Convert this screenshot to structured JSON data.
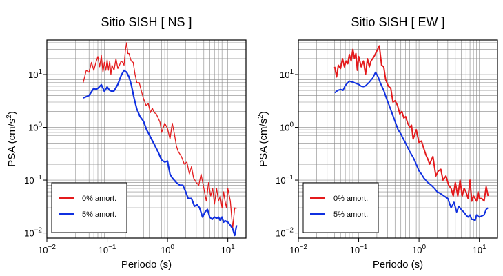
{
  "colors": {
    "red": "#e41a1c",
    "blue": "#1030e0",
    "grid": "#888888",
    "frame": "#000000"
  },
  "chart_data": [
    {
      "type": "line",
      "title": "Sitio SISH [ NS ]",
      "xlabel": "Periodo (s)",
      "ylabel": "PSA (cm/s2)",
      "ylabel_base": "PSA (cm/s",
      "ylabel_sup": "2",
      "ylabel_close": ")",
      "xscale": "log",
      "yscale": "log",
      "xlim": [
        0.01,
        20
      ],
      "ylim": [
        0.008,
        45
      ],
      "xticks": [
        {
          "v": 0.01,
          "base": "10",
          "exp": "−2"
        },
        {
          "v": 0.1,
          "base": "10",
          "exp": "−1"
        },
        {
          "v": 1,
          "base": "10",
          "exp": "0"
        },
        {
          "v": 10,
          "base": "10",
          "exp": "1"
        }
      ],
      "yticks": [
        {
          "v": 0.01,
          "base": "10",
          "exp": "−2"
        },
        {
          "v": 0.1,
          "base": "10",
          "exp": "−1"
        },
        {
          "v": 1,
          "base": "10",
          "exp": "0"
        },
        {
          "v": 10,
          "base": "10",
          "exp": "1"
        }
      ],
      "grid": true,
      "legend_position": "bottom-left",
      "series": [
        {
          "name": "0% amort.",
          "color": "red",
          "width": 1.3,
          "x": [
            0.04,
            0.045,
            0.05,
            0.055,
            0.06,
            0.065,
            0.07,
            0.075,
            0.08,
            0.085,
            0.09,
            0.095,
            0.1,
            0.105,
            0.11,
            0.115,
            0.12,
            0.13,
            0.14,
            0.15,
            0.16,
            0.17,
            0.18,
            0.19,
            0.2,
            0.21,
            0.22,
            0.23,
            0.25,
            0.27,
            0.29,
            0.31,
            0.34,
            0.37,
            0.4,
            0.44,
            0.48,
            0.52,
            0.56,
            0.6,
            0.65,
            0.7,
            0.75,
            0.8,
            0.9,
            1.0,
            1.1,
            1.2,
            1.3,
            1.4,
            1.5,
            1.7,
            1.9,
            2.1,
            2.3,
            2.5,
            2.7,
            3.0,
            3.3,
            3.6,
            4.0,
            4.4,
            4.8,
            5.2,
            5.6,
            6.0,
            6.5,
            7.0,
            7.5,
            8.0,
            8.5,
            9.0,
            9.5,
            10.0,
            11.0,
            12.0,
            13.0,
            14.0
          ],
          "y": [
            7,
            12,
            11,
            17,
            12,
            17,
            22,
            14,
            23,
            11,
            17,
            12,
            19,
            12,
            18,
            10,
            15,
            12,
            20,
            13,
            15,
            18,
            17,
            15,
            28,
            40,
            25,
            25,
            18,
            17,
            10,
            7,
            7,
            4.8,
            3.5,
            2.6,
            2.8,
            1.9,
            2.3,
            1.9,
            1.8,
            1.5,
            1.25,
            0.8,
            1.2,
            0.95,
            0.6,
            1.2,
            0.75,
            0.45,
            0.35,
            0.28,
            0.2,
            0.22,
            0.13,
            0.18,
            0.11,
            0.09,
            0.08,
            0.13,
            0.07,
            0.04,
            0.09,
            0.05,
            0.07,
            0.035,
            0.07,
            0.04,
            0.05,
            0.03,
            0.06,
            0.04,
            0.03,
            0.07,
            0.04,
            0.012,
            0.03,
            0.029
          ]
        },
        {
          "name": "5% amort.",
          "color": "blue",
          "width": 2.2,
          "x": [
            0.04,
            0.05,
            0.06,
            0.065,
            0.07,
            0.08,
            0.09,
            0.1,
            0.11,
            0.12,
            0.13,
            0.15,
            0.17,
            0.19,
            0.21,
            0.23,
            0.25,
            0.28,
            0.31,
            0.35,
            0.4,
            0.45,
            0.5,
            0.55,
            0.6,
            0.7,
            0.8,
            0.9,
            1.0,
            1.1,
            1.2,
            1.4,
            1.6,
            1.8,
            2.0,
            2.2,
            2.5,
            2.8,
            3.1,
            3.4,
            3.8,
            4.2,
            4.6,
            5.0,
            5.5,
            6.0,
            6.5,
            7.0,
            7.5,
            8.0,
            8.5,
            9.0,
            10.0,
            11.0,
            12.0,
            13.0,
            14.0
          ],
          "y": [
            3.6,
            4.0,
            5.5,
            5.2,
            5.5,
            6.4,
            4.8,
            5.8,
            5.0,
            4.8,
            4.9,
            6.5,
            9.5,
            12,
            11,
            9,
            6.5,
            3.5,
            2.2,
            1.6,
            1.3,
            0.9,
            0.72,
            0.58,
            0.48,
            0.34,
            0.24,
            0.22,
            0.23,
            0.13,
            0.11,
            0.09,
            0.08,
            0.08,
            0.06,
            0.045,
            0.045,
            0.032,
            0.034,
            0.03,
            0.02,
            0.025,
            0.028,
            0.02,
            0.018,
            0.02,
            0.019,
            0.02,
            0.017,
            0.02,
            0.016,
            0.017,
            0.016,
            0.014,
            0.012,
            0.009,
            0.014
          ]
        }
      ]
    },
    {
      "type": "line",
      "title": "Sitio SISH [ EW ]",
      "xlabel": "Periodo (s)",
      "ylabel": "PSA (cm/s2)",
      "ylabel_base": "PSA (cm/s",
      "ylabel_sup": "2",
      "ylabel_close": ")",
      "xscale": "log",
      "yscale": "log",
      "xlim": [
        0.01,
        20
      ],
      "ylim": [
        0.008,
        45
      ],
      "xticks": [
        {
          "v": 0.01,
          "base": "10",
          "exp": "−2"
        },
        {
          "v": 0.1,
          "base": "10",
          "exp": "−1"
        },
        {
          "v": 1,
          "base": "10",
          "exp": "0"
        },
        {
          "v": 10,
          "base": "10",
          "exp": "1"
        }
      ],
      "yticks": [
        {
          "v": 0.01,
          "base": "10",
          "exp": "−2"
        },
        {
          "v": 0.1,
          "base": "10",
          "exp": "−1"
        },
        {
          "v": 1,
          "base": "10",
          "exp": "0"
        },
        {
          "v": 10,
          "base": "10",
          "exp": "1"
        }
      ],
      "grid": true,
      "legend_position": "bottom-left",
      "series": [
        {
          "name": "0% amort.",
          "color": "red",
          "width": 2.0,
          "x": [
            0.04,
            0.043,
            0.046,
            0.05,
            0.054,
            0.058,
            0.062,
            0.066,
            0.07,
            0.075,
            0.08,
            0.085,
            0.09,
            0.095,
            0.1,
            0.11,
            0.12,
            0.13,
            0.14,
            0.15,
            0.16,
            0.18,
            0.2,
            0.22,
            0.24,
            0.26,
            0.28,
            0.31,
            0.34,
            0.37,
            0.4,
            0.44,
            0.48,
            0.52,
            0.56,
            0.6,
            0.65,
            0.7,
            0.75,
            0.8,
            0.9,
            1.0,
            1.1,
            1.2,
            1.3,
            1.4,
            1.5,
            1.7,
            1.9,
            2.1,
            2.3,
            2.5,
            2.8,
            3.1,
            3.4,
            3.7,
            4.0,
            4.4,
            4.8,
            5.2,
            5.6,
            6.0,
            6.5,
            7.0,
            7.5,
            8.0,
            8.5,
            9.0,
            9.5,
            10.0,
            11.0,
            12.0,
            13.0,
            14.0
          ],
          "y": [
            14,
            9,
            15,
            13,
            20,
            14,
            18,
            16,
            24,
            18,
            30,
            20,
            25,
            12,
            22,
            14,
            18,
            10,
            20,
            14,
            18,
            22,
            28,
            35,
            15,
            14,
            8,
            6,
            5.5,
            3,
            3.2,
            2.6,
            1.8,
            2.0,
            1.5,
            1.6,
            1.2,
            1.0,
            1.1,
            0.6,
            0.9,
            0.52,
            0.55,
            0.4,
            0.3,
            0.25,
            0.2,
            0.28,
            0.12,
            0.15,
            0.16,
            0.1,
            0.12,
            0.08,
            0.07,
            0.05,
            0.09,
            0.05,
            0.1,
            0.05,
            0.07,
            0.06,
            0.045,
            0.1,
            0.04,
            0.05,
            0.045,
            0.04,
            0.06,
            0.045,
            0.045,
            0.04,
            0.075,
            0.05
          ]
        },
        {
          "name": "5% amort.",
          "color": "blue",
          "width": 2.0,
          "x": [
            0.04,
            0.045,
            0.05,
            0.055,
            0.06,
            0.07,
            0.08,
            0.09,
            0.1,
            0.11,
            0.12,
            0.13,
            0.15,
            0.17,
            0.19,
            0.21,
            0.23,
            0.26,
            0.29,
            0.32,
            0.36,
            0.4,
            0.45,
            0.5,
            0.55,
            0.6,
            0.7,
            0.8,
            0.9,
            1.0,
            1.1,
            1.2,
            1.4,
            1.6,
            1.8,
            2.0,
            2.3,
            2.6,
            3.0,
            3.4,
            3.8,
            4.2,
            4.6,
            5.0,
            5.5,
            6.0,
            6.5,
            7.0,
            7.5,
            8.0,
            8.5,
            9.0,
            10.0,
            11.0,
            12.0,
            13.0,
            14.0
          ],
          "y": [
            4.5,
            5,
            5.2,
            5,
            6.2,
            7.5,
            7.2,
            6.8,
            6.5,
            6,
            5.9,
            6.1,
            7.2,
            8.5,
            11,
            9,
            6.8,
            5,
            3.5,
            2.6,
            1.8,
            1.3,
            0.9,
            0.75,
            0.6,
            0.5,
            0.35,
            0.27,
            0.2,
            0.15,
            0.13,
            0.11,
            0.09,
            0.08,
            0.07,
            0.06,
            0.055,
            0.05,
            0.045,
            0.03,
            0.038,
            0.025,
            0.032,
            0.028,
            0.025,
            0.022,
            0.02,
            0.022,
            0.018,
            0.018,
            0.017,
            0.022,
            0.02,
            0.021,
            0.022,
            0.028,
            0.03
          ]
        }
      ]
    }
  ]
}
